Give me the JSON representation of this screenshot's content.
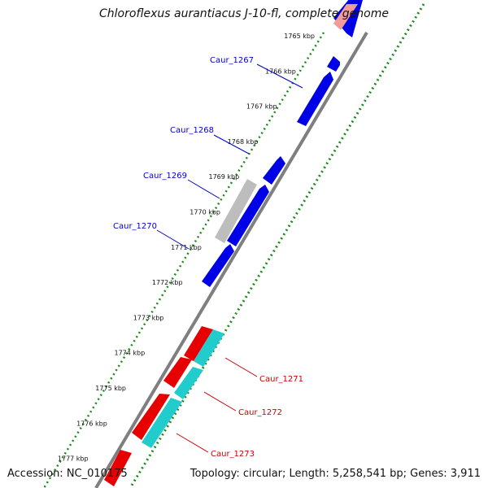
{
  "title": "Chloroflexus aurantiacus J-10-fl, complete genome",
  "footer": {
    "accession": "Accession: NC_010175",
    "summary": "Topology: circular; Length: 5,258,541 bp; Genes: 3,911"
  },
  "colors": {
    "backbone": "#7f7f7f",
    "ruler": "#1a8a1a",
    "forward": "#0000e6",
    "reverse": "#e60000",
    "rna": "#22cccc",
    "other": "#bdbdbd",
    "forward_label": "#0000cc",
    "reverse_label": "#cc0000"
  },
  "ruler_ticks": [
    {
      "kbp": 1765,
      "label": "1765 kbp"
    },
    {
      "kbp": 1766,
      "label": "1766 kbp"
    },
    {
      "kbp": 1767,
      "label": "1767 kbp"
    },
    {
      "kbp": 1768,
      "label": "1768 kbp"
    },
    {
      "kbp": 1769,
      "label": "1769 kbp"
    },
    {
      "kbp": 1770,
      "label": "1770 kbp"
    },
    {
      "kbp": 1771,
      "label": "1771 kbp"
    },
    {
      "kbp": 1772,
      "label": "1772 kbp"
    },
    {
      "kbp": 1773,
      "label": "1773 kbp"
    },
    {
      "kbp": 1774,
      "label": "1774 kbp"
    },
    {
      "kbp": 1775,
      "label": "1775 kbp"
    },
    {
      "kbp": 1776,
      "label": "1776 kbp"
    },
    {
      "kbp": 1777,
      "label": "1777 kbp"
    }
  ],
  "gene_labels": [
    {
      "name": "Caur_1267",
      "strand": "forward"
    },
    {
      "name": "Caur_1268",
      "strand": "forward"
    },
    {
      "name": "Caur_1269",
      "strand": "forward"
    },
    {
      "name": "Caur_1270",
      "strand": "forward"
    },
    {
      "name": "Caur_1271",
      "strand": "reverse"
    },
    {
      "name": "Caur_1272",
      "strand": "reverse"
    },
    {
      "name": "Caur_1273",
      "strand": "reverse"
    }
  ]
}
